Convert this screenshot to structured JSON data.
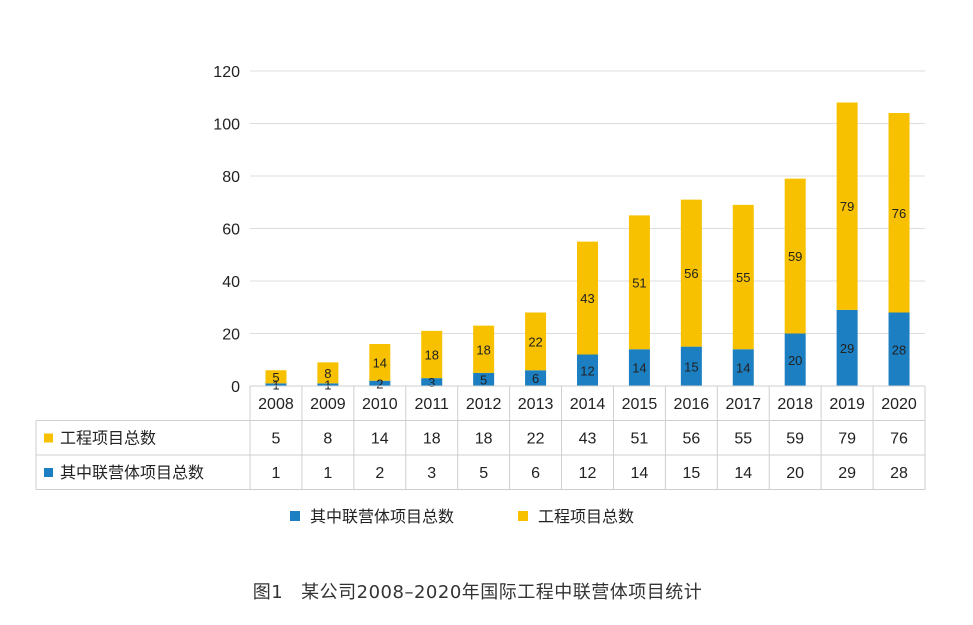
{
  "chart_data": {
    "type": "bar",
    "stacked": true,
    "categories": [
      "2008",
      "2009",
      "2010",
      "2011",
      "2012",
      "2013",
      "2014",
      "2015",
      "2016",
      "2017",
      "2018",
      "2019",
      "2020"
    ],
    "series": [
      {
        "name": "其中联营体项目总数",
        "color": "#1b7fc1",
        "values": [
          1,
          1,
          2,
          3,
          5,
          6,
          12,
          14,
          15,
          14,
          20,
          29,
          28
        ]
      },
      {
        "name": "工程项目总数",
        "color": "#f7c100",
        "values": [
          5,
          8,
          14,
          18,
          18,
          22,
          43,
          51,
          56,
          55,
          59,
          79,
          76
        ]
      }
    ],
    "y_ticks": [
      0,
      20,
      40,
      60,
      80,
      100,
      120
    ],
    "ylim": [
      0,
      120
    ],
    "grid": true,
    "table_rows": [
      {
        "label": "工程项目总数",
        "series_index": 1
      },
      {
        "label": "其中联营体项目总数",
        "series_index": 0
      }
    ],
    "legend": [
      "其中联营体项目总数",
      "工程项目总数"
    ],
    "legend_position": "bottom"
  },
  "caption": {
    "figure_label": "图1",
    "text": "某公司2008–2020年国际工程中联营体项目统计"
  }
}
